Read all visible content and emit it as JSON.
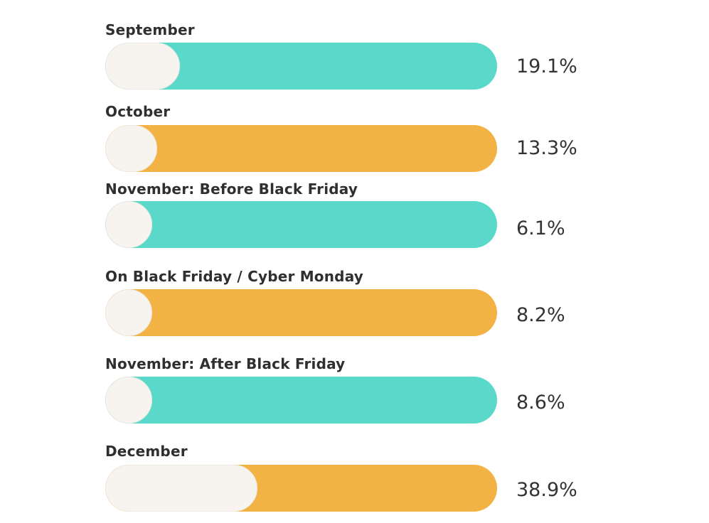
{
  "chart_data": {
    "type": "bar",
    "orientation": "horizontal",
    "categories": [
      "September",
      "October",
      "November: Before Black Friday",
      "On Black Friday / Cyber Monday",
      "November: After Black Friday",
      "December"
    ],
    "values": [
      19.1,
      13.3,
      6.1,
      8.2,
      8.6,
      38.9
    ],
    "value_labels": [
      "19.1%",
      "13.3%",
      "6.1%",
      "8.2%",
      "8.6%",
      "38.9%"
    ],
    "unit": "%",
    "bar_colors": [
      "#5ad8ca",
      "#f2b244",
      "#5ad8ca",
      "#f2b244",
      "#5ad8ca",
      "#f2b244"
    ],
    "fill_color": "#f7f3ef",
    "grid": false,
    "legend": "none"
  }
}
